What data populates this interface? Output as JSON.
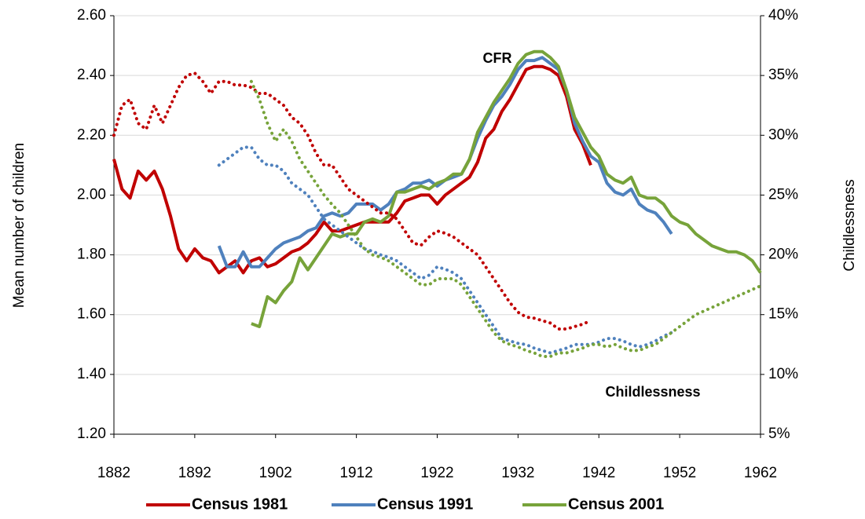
{
  "chart_data": {
    "type": "line",
    "y_label": "Mean  number of children",
    "y2_label": "Childlessness",
    "annotations": [
      "CFR",
      "Childlessness"
    ],
    "x": [
      1882,
      1883,
      1884,
      1885,
      1886,
      1887,
      1888,
      1889,
      1890,
      1891,
      1892,
      1893,
      1894,
      1895,
      1896,
      1897,
      1898,
      1899,
      1900,
      1901,
      1902,
      1903,
      1904,
      1905,
      1906,
      1907,
      1908,
      1909,
      1910,
      1911,
      1912,
      1913,
      1914,
      1915,
      1916,
      1917,
      1918,
      1919,
      1920,
      1921,
      1922,
      1923,
      1924,
      1925,
      1926,
      1927,
      1928,
      1929,
      1930,
      1931,
      1932,
      1933,
      1934,
      1935,
      1936,
      1937,
      1938,
      1939,
      1940,
      1941,
      1942,
      1943,
      1944,
      1945,
      1946,
      1947,
      1948,
      1949,
      1950,
      1951,
      1952,
      1953,
      1954,
      1955,
      1956,
      1957,
      1958,
      1959,
      1960,
      1961,
      1962
    ],
    "xlim": [
      1882,
      1962
    ],
    "xticks": [
      1882,
      1892,
      1902,
      1912,
      1922,
      1932,
      1942,
      1952,
      1962
    ],
    "ylim": [
      1.2,
      2.6
    ],
    "yticks": [
      {
        "value": 1.2,
        "label": "1.20"
      },
      {
        "value": 1.4,
        "label": "1.40"
      },
      {
        "value": 1.6,
        "label": "1.60"
      },
      {
        "value": 1.8,
        "label": "1.80"
      },
      {
        "value": 2.0,
        "label": "2.00"
      },
      {
        "value": 2.2,
        "label": "2.20"
      },
      {
        "value": 2.4,
        "label": "2.40"
      },
      {
        "value": 2.6,
        "label": "2.60"
      }
    ],
    "y2lim": [
      5,
      40
    ],
    "y2ticks": [
      {
        "value": 5,
        "label": "5%"
      },
      {
        "value": 10,
        "label": "10%"
      },
      {
        "value": 15,
        "label": "15%"
      },
      {
        "value": 20,
        "label": "20%"
      },
      {
        "value": 25,
        "label": "25%"
      },
      {
        "value": 30,
        "label": "30%"
      },
      {
        "value": 35,
        "label": "35%"
      },
      {
        "value": 40,
        "label": "40%"
      }
    ],
    "grid": true,
    "legend": "bottom",
    "series": [
      {
        "name": "Census 1981",
        "color": "#c00000",
        "dash": "solid",
        "values": [
          2.12,
          2.02,
          1.99,
          2.08,
          2.05,
          2.08,
          2.02,
          1.93,
          1.82,
          1.78,
          1.82,
          1.79,
          1.78,
          1.74,
          1.76,
          1.78,
          1.74,
          1.78,
          1.79,
          1.76,
          1.77,
          1.79,
          1.81,
          1.82,
          1.84,
          1.87,
          1.91,
          1.88,
          1.88,
          1.89,
          1.9,
          1.91,
          1.91,
          1.91,
          1.91,
          1.94,
          1.98,
          1.99,
          2.0,
          2.0,
          1.97,
          2.0,
          2.02,
          2.04,
          2.06,
          2.11,
          2.19,
          2.22,
          2.28,
          2.32,
          2.37,
          2.42,
          2.43,
          2.43,
          2.42,
          2.4,
          2.33,
          2.22,
          2.17,
          2.1,
          null,
          null,
          null,
          null,
          null,
          null,
          null,
          null,
          null,
          null,
          null,
          null,
          null,
          null,
          null,
          null,
          null,
          null,
          null,
          null,
          null
        ]
      },
      {
        "name": "Census 1991",
        "color": "#4f81bd",
        "dash": "solid",
        "values": [
          null,
          null,
          null,
          null,
          null,
          null,
          null,
          null,
          null,
          null,
          null,
          null,
          null,
          1.83,
          1.76,
          1.76,
          1.81,
          1.76,
          1.76,
          1.79,
          1.82,
          1.84,
          1.85,
          1.86,
          1.88,
          1.89,
          1.93,
          1.94,
          1.93,
          1.94,
          1.97,
          1.97,
          1.97,
          1.95,
          1.97,
          2.01,
          2.02,
          2.04,
          2.04,
          2.05,
          2.03,
          2.05,
          2.06,
          2.07,
          2.12,
          2.19,
          2.25,
          2.3,
          2.33,
          2.37,
          2.42,
          2.45,
          2.45,
          2.46,
          2.44,
          2.42,
          2.35,
          2.24,
          2.18,
          2.13,
          2.11,
          2.04,
          2.01,
          2.0,
          2.02,
          1.97,
          1.95,
          1.94,
          1.91,
          1.87,
          null,
          null,
          null,
          null,
          null,
          null,
          null,
          null,
          null,
          null,
          null
        ]
      },
      {
        "name": "Census 2001",
        "color": "#77a33a",
        "dash": "solid",
        "values": [
          null,
          null,
          null,
          null,
          null,
          null,
          null,
          null,
          null,
          null,
          null,
          null,
          null,
          null,
          null,
          null,
          null,
          1.57,
          1.56,
          1.66,
          1.64,
          1.68,
          1.71,
          1.79,
          1.75,
          1.79,
          1.83,
          1.87,
          1.86,
          1.87,
          1.87,
          1.91,
          1.92,
          1.91,
          1.93,
          2.01,
          2.01,
          2.02,
          2.03,
          2.02,
          2.04,
          2.05,
          2.07,
          2.07,
          2.12,
          2.21,
          2.26,
          2.31,
          2.35,
          2.39,
          2.44,
          2.47,
          2.48,
          2.48,
          2.46,
          2.43,
          2.35,
          2.26,
          2.21,
          2.16,
          2.13,
          2.07,
          2.05,
          2.04,
          2.06,
          2.0,
          1.99,
          1.99,
          1.97,
          1.93,
          1.91,
          1.9,
          1.87,
          1.85,
          1.83,
          1.82,
          1.81,
          1.81,
          1.8,
          1.78,
          1.74
        ]
      },
      {
        "axis": "y2",
        "color": "#c00000",
        "dash": "dotted",
        "values": [
          30,
          32.5,
          33,
          31,
          30.5,
          32.5,
          31,
          32.5,
          34,
          35,
          35.2,
          34.5,
          33.5,
          34.5,
          34.5,
          34.2,
          34.2,
          34,
          33.5,
          33.5,
          33,
          32.5,
          31.5,
          31,
          30,
          28.5,
          27.5,
          27.5,
          26.5,
          25.5,
          25,
          24.5,
          24,
          23.5,
          23.5,
          23,
          22,
          21,
          20.8,
          21.5,
          22,
          21.8,
          21.5,
          21,
          20.5,
          20,
          19,
          18,
          17,
          16,
          15.2,
          14.8,
          14.7,
          14.5,
          14.3,
          13.8,
          13.8,
          14,
          14.2,
          14.5,
          null,
          null,
          null,
          null,
          null,
          null,
          null,
          null,
          null,
          null,
          null,
          null,
          null,
          null,
          null,
          null,
          null,
          null,
          null,
          null,
          null
        ]
      },
      {
        "axis": "y2",
        "color": "#4f81bd",
        "dash": "dotted",
        "values": [
          null,
          null,
          null,
          null,
          null,
          null,
          null,
          null,
          null,
          null,
          null,
          null,
          null,
          27.5,
          28,
          28.5,
          29,
          29,
          28,
          27.5,
          27.5,
          27,
          26,
          25.5,
          25,
          24,
          23,
          22.5,
          22,
          21.5,
          21,
          20.5,
          20.3,
          20,
          19.8,
          19.5,
          19,
          18.5,
          18,
          18.3,
          19,
          18.8,
          18.5,
          18,
          17,
          16,
          15,
          14,
          13,
          12.8,
          12.6,
          12.5,
          12.2,
          12,
          11.8,
          12,
          12.2,
          12.5,
          12.5,
          12.5,
          12.7,
          13,
          13,
          12.8,
          12.5,
          12.3,
          12.5,
          12.8,
          13.2,
          13.5,
          null,
          null,
          null,
          null,
          null,
          null,
          null,
          null,
          null,
          null,
          null
        ]
      },
      {
        "axis": "y2",
        "color": "#77a33a",
        "dash": "dotted",
        "values": [
          null,
          null,
          null,
          null,
          null,
          null,
          null,
          null,
          null,
          null,
          null,
          null,
          null,
          null,
          null,
          null,
          null,
          34.5,
          33,
          31,
          29.5,
          30.5,
          29.5,
          28,
          27,
          26,
          25,
          24.2,
          23.5,
          22.5,
          21.5,
          20.5,
          20,
          19.8,
          19.5,
          19,
          18.5,
          18,
          17.5,
          17.5,
          18,
          18,
          18,
          17.5,
          16.5,
          15.5,
          14.5,
          13.5,
          12.8,
          12.5,
          12.3,
          12,
          11.8,
          11.5,
          11.5,
          11.8,
          11.8,
          12,
          12.2,
          12.5,
          12.5,
          12.3,
          12.5,
          12.2,
          12,
          12,
          12.3,
          12.5,
          13,
          13.5,
          14,
          14.5,
          15,
          15.3,
          15.6,
          15.9,
          16.2,
          16.5,
          16.8,
          17.1,
          17.4
        ]
      }
    ]
  }
}
